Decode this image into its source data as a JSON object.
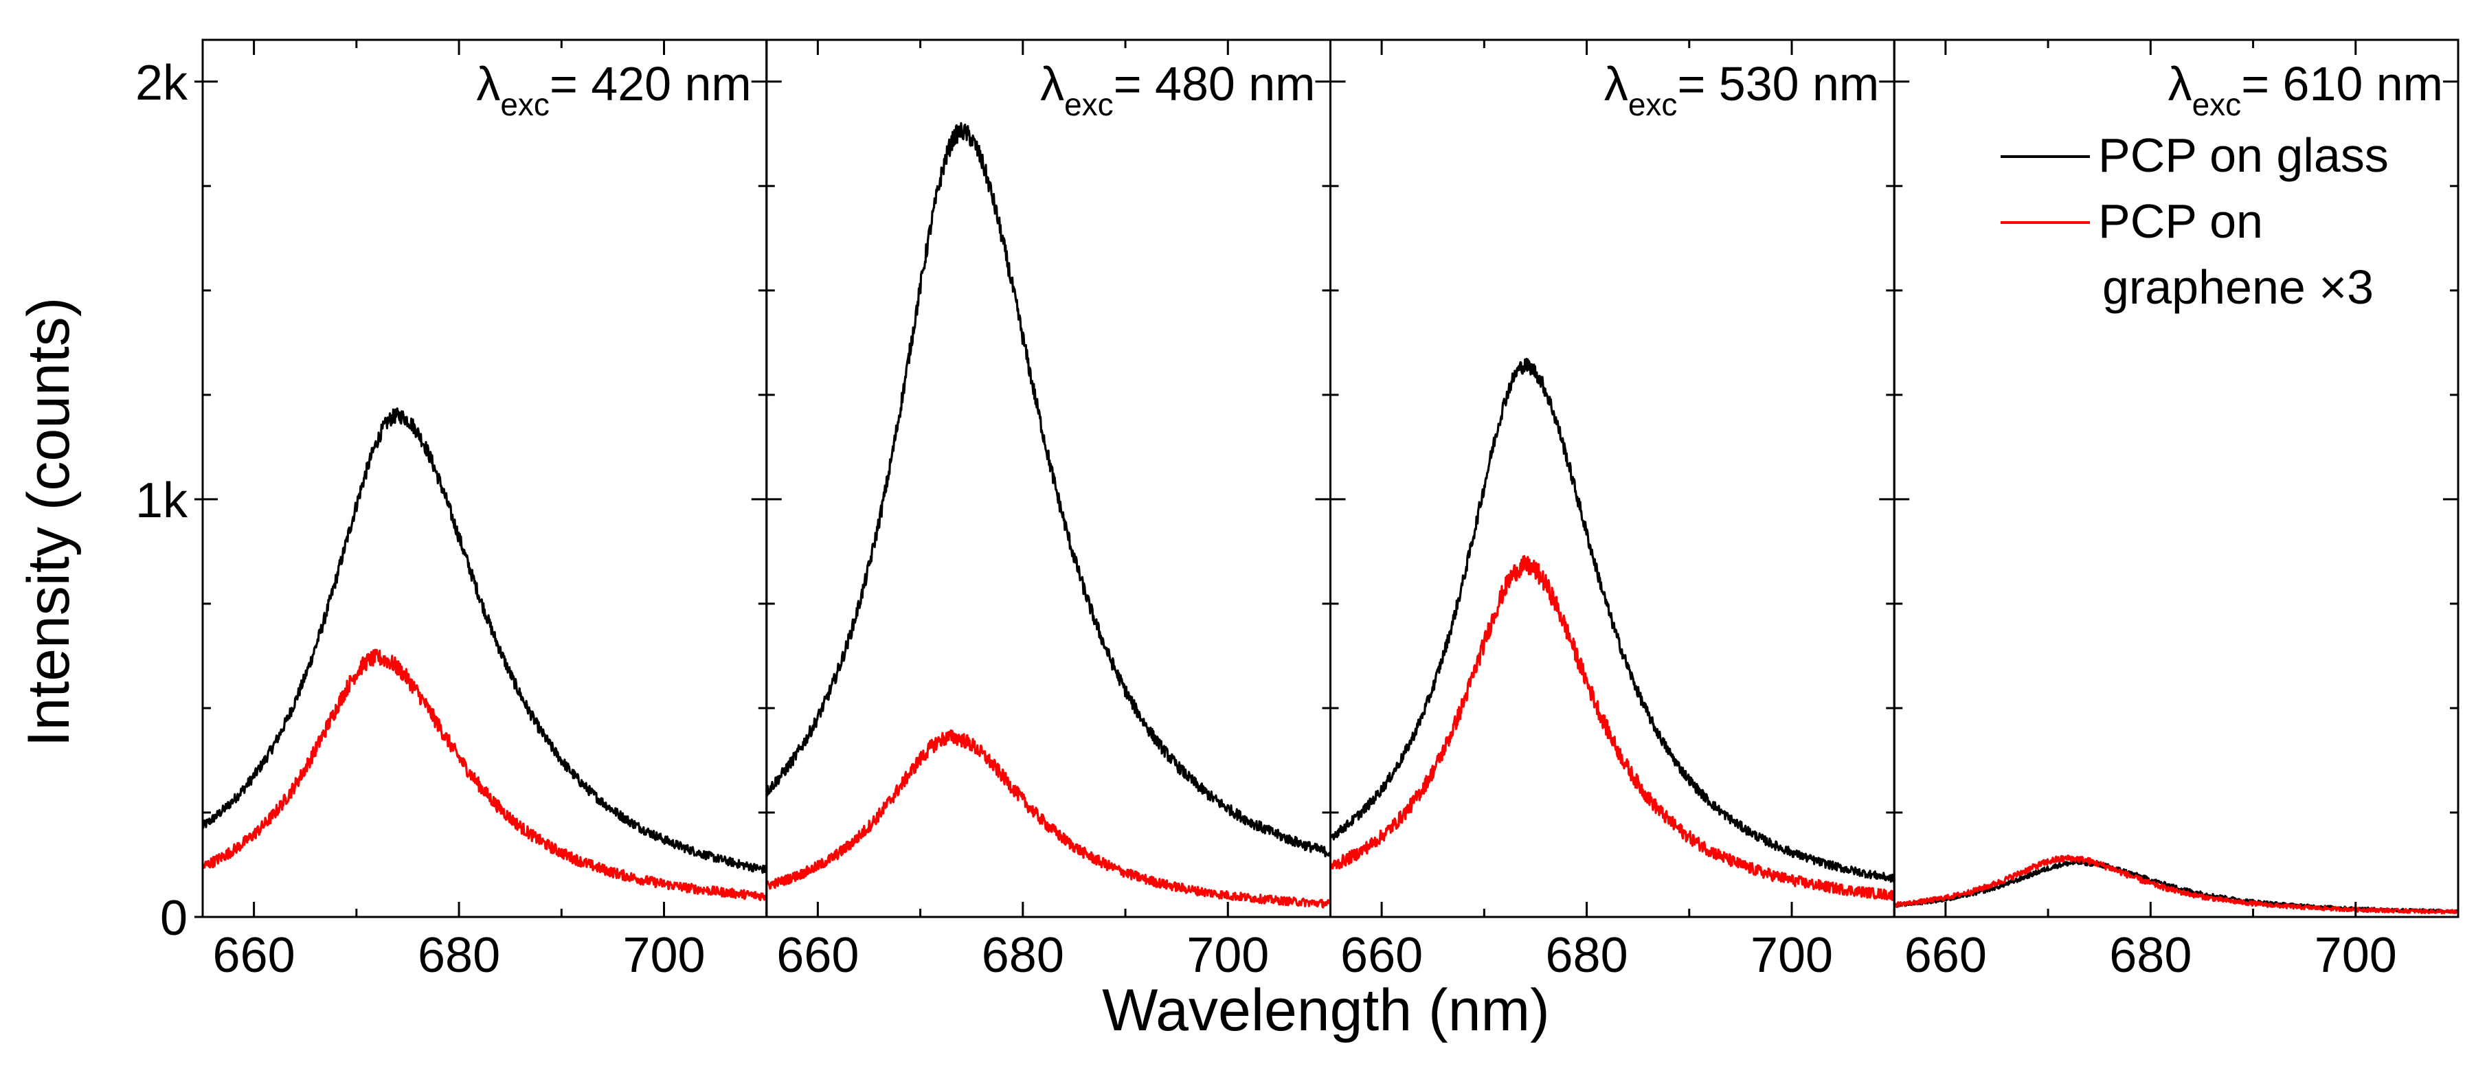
{
  "chart_data": {
    "type": "line",
    "xlabel": "Wavelength (nm)",
    "ylabel": "Intensity (counts)",
    "xlim": [
      655,
      710
    ],
    "ylim": [
      0,
      2100
    ],
    "x_ticks": [
      660,
      680,
      700
    ],
    "x_tick_labels": [
      "660",
      "680",
      "700"
    ],
    "y_ticks": [
      0,
      1000,
      2000
    ],
    "y_tick_labels": [
      "0",
      "1k",
      "2k"
    ],
    "grid": false,
    "legend": {
      "placement": "top-right of last panel",
      "entries": [
        {
          "series": "glass",
          "lines": [
            "PCP on glass"
          ],
          "color": "#000000"
        },
        {
          "series": "graphene",
          "lines": [
            "PCP on",
            "graphene ×3"
          ],
          "color": "#ff0000"
        }
      ]
    },
    "panels": [
      {
        "excitation": {
          "symbol": "λ",
          "sub": "exc",
          "text": "= 420 nm"
        },
        "series": [
          {
            "key": "glass",
            "color": "#000000",
            "peak_x": 674,
            "peak_y": 1200,
            "width_left": 8.5,
            "width_right": 10.5,
            "baseline": 20,
            "noise": 18
          },
          {
            "key": "graphene",
            "color": "#ff0000",
            "peak_x": 672,
            "peak_y": 620,
            "width_left": 8.0,
            "width_right": 10.0,
            "baseline": 10,
            "noise": 20
          }
        ]
      },
      {
        "excitation": {
          "symbol": "λ",
          "sub": "exc",
          "text": "= 480 nm"
        },
        "series": [
          {
            "key": "glass",
            "color": "#000000",
            "peak_x": 674,
            "peak_y": 1880,
            "width_left": 8.0,
            "width_right": 10.0,
            "baseline": 20,
            "noise": 22
          },
          {
            "key": "graphene",
            "color": "#ff0000",
            "peak_x": 673,
            "peak_y": 430,
            "width_left": 8.0,
            "width_right": 9.5,
            "baseline": 5,
            "noise": 18
          }
        ]
      },
      {
        "excitation": {
          "symbol": "λ",
          "sub": "exc",
          "text": "= 530 nm"
        },
        "series": [
          {
            "key": "glass",
            "color": "#000000",
            "peak_x": 674,
            "peak_y": 1320,
            "width_left": 7.5,
            "width_right": 9.0,
            "baseline": 15,
            "noise": 18
          },
          {
            "key": "graphene",
            "color": "#ff0000",
            "peak_x": 674,
            "peak_y": 840,
            "width_left": 7.5,
            "width_right": 8.5,
            "baseline": 8,
            "noise": 24
          }
        ]
      },
      {
        "excitation": {
          "symbol": "λ",
          "sub": "exc",
          "text": "= 610 nm"
        },
        "series": [
          {
            "key": "glass",
            "color": "#000000",
            "peak_x": 673,
            "peak_y": 130,
            "width_left": 8.5,
            "width_right": 10.0,
            "baseline": 5,
            "noise": 6
          },
          {
            "key": "graphene",
            "color": "#ff0000",
            "peak_x": 672,
            "peak_y": 140,
            "width_left": 8.0,
            "width_right": 9.0,
            "baseline": 5,
            "noise": 8
          }
        ]
      }
    ]
  }
}
